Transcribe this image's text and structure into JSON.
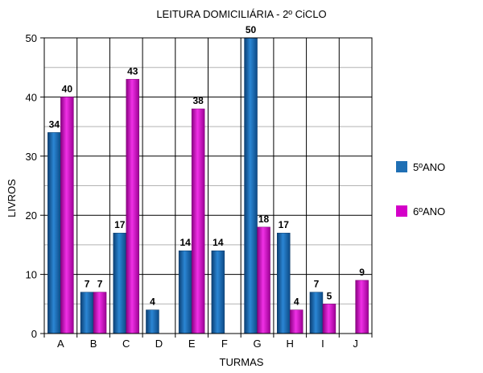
{
  "chart_data": {
    "type": "bar",
    "title": "LEITURA DOMICILIÁRIA - 2º CiCLO",
    "xlabel": "TURMAS",
    "ylabel": "LIVROS",
    "categories": [
      "A",
      "B",
      "C",
      "D",
      "E",
      "F",
      "G",
      "H",
      "I",
      "J"
    ],
    "ylim": [
      0,
      50
    ],
    "yticks": [
      0,
      10,
      20,
      30,
      40,
      50
    ],
    "grid": true,
    "legend_position": "right",
    "series": [
      {
        "name": "5ºANO",
        "color": "#1f6fb4",
        "values": [
          34,
          7,
          17,
          4,
          14,
          14,
          50,
          17,
          7,
          0
        ],
        "labels": [
          "34",
          "7",
          "17",
          "4",
          "14",
          "14",
          "50",
          "17",
          "7",
          ""
        ]
      },
      {
        "name": "6ºANO",
        "color": "#d400c8",
        "values": [
          40,
          7,
          43,
          0,
          38,
          0,
          18,
          4,
          5,
          9
        ],
        "labels": [
          "40",
          "7",
          "43",
          "",
          "38",
          "",
          "18",
          "4",
          "5",
          "9"
        ]
      }
    ]
  }
}
